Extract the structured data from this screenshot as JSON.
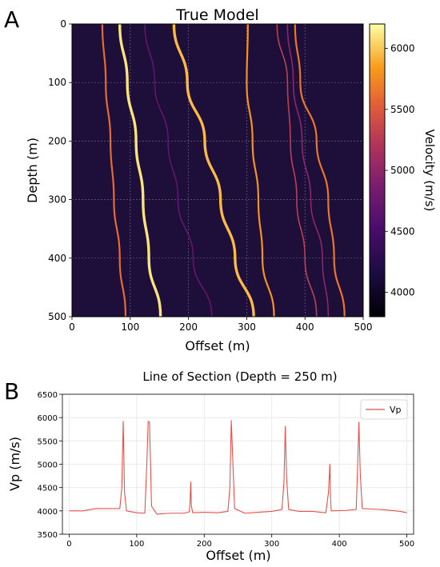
{
  "panels": {
    "a_letter": "A",
    "b_letter": "B"
  },
  "chart_data": [
    {
      "type": "heatmap",
      "title": "True Model",
      "xlabel": "Offset (m)",
      "ylabel": "Depth (m)",
      "xlim": [
        0,
        500
      ],
      "ylim": [
        500,
        0
      ],
      "xticks": [
        "0",
        "100",
        "200",
        "300",
        "400",
        "500"
      ],
      "yticks": [
        "0",
        "100",
        "200",
        "300",
        "400",
        "500"
      ],
      "grid": true,
      "colormap": "inferno",
      "background_color": "#1d0f3a",
      "colorbar": {
        "label": "Velocity (m/s)",
        "range": [
          3800,
          6200
        ],
        "ticks": [
          "4000",
          "4500",
          "5000",
          "5500",
          "6000"
        ]
      },
      "layers": [
        {
          "points": [
            [
              52,
              0
            ],
            [
              58,
              100
            ],
            [
              66,
              200
            ],
            [
              72,
              300
            ],
            [
              82,
              400
            ],
            [
              92,
              500
            ]
          ],
          "velocity": 5600
        },
        {
          "points": [
            [
              82,
              0
            ],
            [
              95,
              100
            ],
            [
              110,
              200
            ],
            [
              122,
              300
            ],
            [
              132,
              400
            ],
            [
              152,
              500
            ]
          ],
          "velocity": 6100
        },
        {
          "points": [
            [
              125,
              0
            ],
            [
              142,
              100
            ],
            [
              165,
              200
            ],
            [
              182,
              300
            ],
            [
              208,
              400
            ],
            [
              240,
              500
            ]
          ],
          "velocity": 4700
        },
        {
          "points": [
            [
              175,
              0
            ],
            [
              198,
              100
            ],
            [
              228,
              200
            ],
            [
              255,
              300
            ],
            [
              280,
              400
            ],
            [
              312,
              500
            ]
          ],
          "velocity": 5950
        },
        {
          "points": [
            [
              302,
              0
            ],
            [
              300,
              100
            ],
            [
              310,
              200
            ],
            [
              320,
              300
            ],
            [
              327,
              400
            ],
            [
              347,
              500
            ]
          ],
          "velocity": 5800
        },
        {
          "points": [
            [
              352,
              0
            ],
            [
              370,
              100
            ],
            [
              375,
              200
            ],
            [
              386,
              300
            ],
            [
              400,
              400
            ],
            [
              420,
              500
            ]
          ],
          "velocity": 5300
        },
        {
          "points": [
            [
              370,
              0
            ],
            [
              380,
              100
            ],
            [
              395,
              200
            ],
            [
              410,
              300
            ],
            [
              430,
              400
            ],
            [
              440,
              500
            ]
          ],
          "velocity": 5000
        },
        {
          "points": [
            [
              383,
              0
            ],
            [
              392,
              100
            ],
            [
              420,
              200
            ],
            [
              440,
              300
            ],
            [
              450,
              400
            ],
            [
              468,
              500
            ]
          ],
          "velocity": 5650
        }
      ]
    },
    {
      "type": "line",
      "title": "Line of Section (Depth = 250 m)",
      "xlabel": "Offset (m)",
      "ylabel": "Vp (m/s)",
      "xlim": [
        -10,
        510
      ],
      "ylim": [
        3500,
        6500
      ],
      "xticks": [
        "0",
        "100",
        "200",
        "300",
        "400",
        "500"
      ],
      "yticks": [
        "3500",
        "4000",
        "4500",
        "5000",
        "5500",
        "6000",
        "6500"
      ],
      "grid": true,
      "legend": "top-right",
      "series": [
        {
          "name": "Vp",
          "color": "#e8524a",
          "x": [
            0,
            20,
            40,
            60,
            75,
            78,
            80,
            82,
            85,
            100,
            112,
            115,
            117,
            119,
            122,
            130,
            150,
            170,
            178,
            179,
            180,
            181,
            183,
            200,
            220,
            235,
            238,
            240,
            242,
            245,
            260,
            280,
            300,
            315,
            318,
            320,
            322,
            325,
            340,
            360,
            380,
            384,
            386,
            387,
            388,
            390,
            410,
            425,
            427,
            429,
            431,
            434,
            450,
            470,
            490,
            500
          ],
          "y": [
            4000,
            4000,
            4050,
            4050,
            4050,
            4500,
            5920,
            4400,
            4000,
            3960,
            3950,
            5000,
            5920,
            5900,
            4100,
            3930,
            3950,
            3950,
            3980,
            4200,
            4620,
            4100,
            3960,
            3970,
            3960,
            3990,
            4500,
            5940,
            5200,
            4050,
            3950,
            3970,
            3990,
            4030,
            4600,
            5810,
            4700,
            4030,
            3990,
            3990,
            3960,
            4400,
            5000,
            4300,
            4000,
            4000,
            4010,
            4030,
            4900,
            5900,
            4800,
            4050,
            4040,
            4020,
            3990,
            3960
          ]
        }
      ]
    }
  ]
}
